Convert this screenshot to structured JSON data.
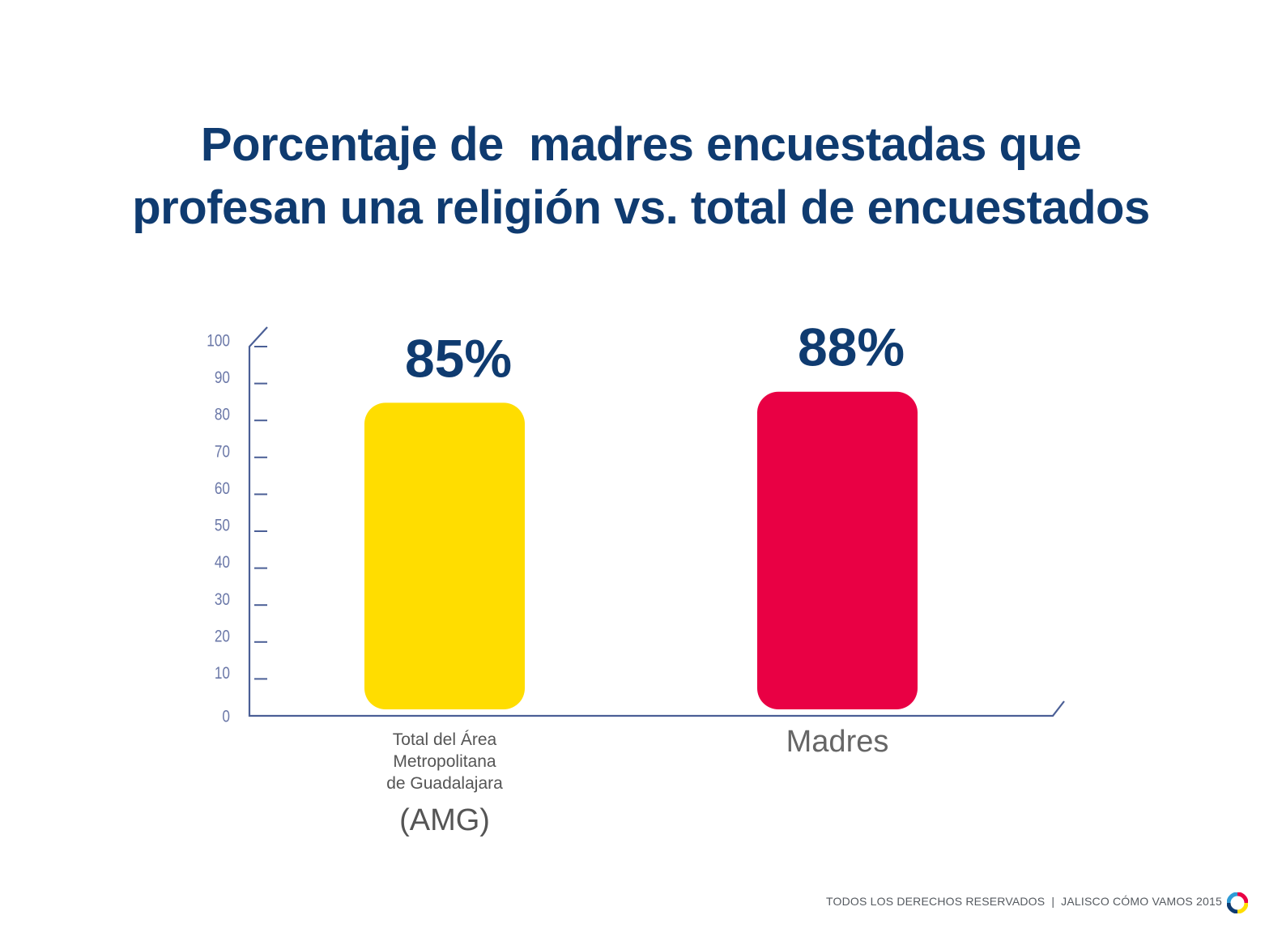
{
  "chart_data": {
    "type": "bar",
    "title": "Porcentaje de  madres encuestadas que profesan una religión vs. total de encuestados",
    "title_lines": [
      "Porcentaje de  madres encuestadas que",
      "profesan una religión vs. total de encuestados"
    ],
    "categories": [
      [
        "Total del Área",
        "Metropolitana",
        "de Guadalajara",
        "(AMG)"
      ],
      [
        "Madres"
      ]
    ],
    "values": [
      85,
      88
    ],
    "data_labels": [
      "85%",
      "88%"
    ],
    "colors": [
      "#ffdd00",
      "#e90044"
    ],
    "ylim": [
      0,
      100
    ],
    "yticks": [
      "0",
      "10",
      "20",
      "30",
      "40",
      "50",
      "60",
      "70",
      "80",
      "90",
      "100"
    ],
    "grid": false,
    "legend": "none"
  },
  "footer": {
    "rights": "TODOS LOS DERECHOS RESERVADOS",
    "separator": "|",
    "brand": "JALISCO CÓMO VAMOS 2015"
  },
  "logo": {
    "icon": "ring-logo-icon",
    "colors": [
      "#e90044",
      "#ffdd00",
      "#0f3b70",
      "#2f9bd6"
    ]
  }
}
